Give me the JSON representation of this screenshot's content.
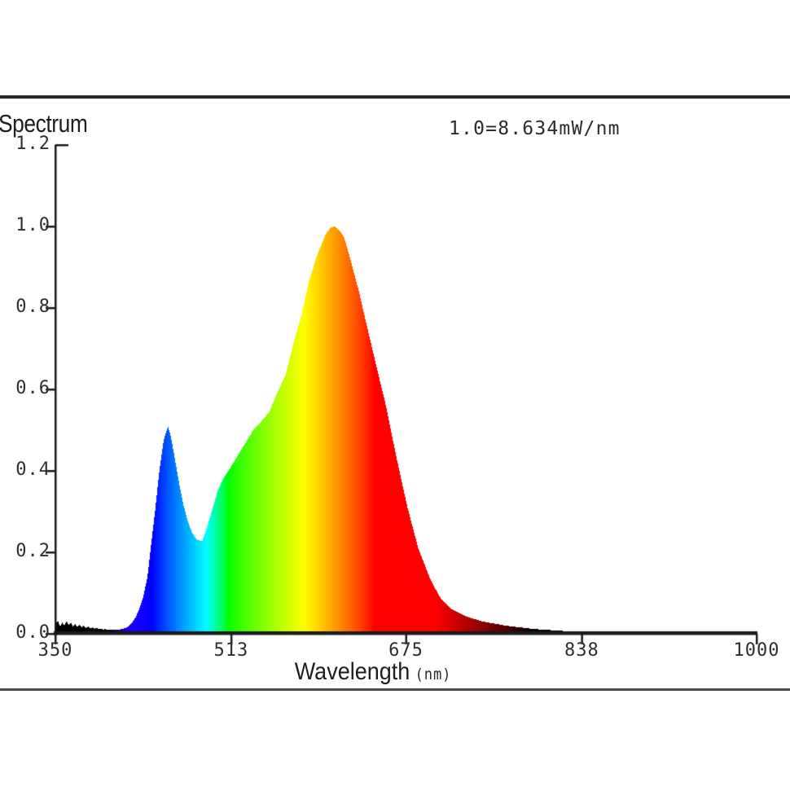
{
  "page": {
    "background": "#ffffff",
    "top_rule_color": "#282828",
    "bottom_rule_color": "#4d4d4d",
    "text_color": "#2e2e2e"
  },
  "chart_data": {
    "type": "area",
    "title": "Spectrum",
    "annotation": "1.0=8.634mW/nm",
    "normalization": "1.0 = 8.634 mW/nm",
    "xlabel": "Wavelength (nm)",
    "xlabel_main": "Wavelength",
    "xlabel_unit": "(nm)",
    "ylabel": "",
    "xlim": [
      350,
      1000
    ],
    "ylim": [
      0,
      1.2
    ],
    "grid": false,
    "legend": "none",
    "fill": "visible-spectrum-wavelength-gradient",
    "axis_color": "#1a1a1a",
    "xticks": [
      {
        "label": "350",
        "value": 350
      },
      {
        "label": "513",
        "value": 513
      },
      {
        "label": "675",
        "value": 675
      },
      {
        "label": "838",
        "value": 838
      },
      {
        "label": "1000",
        "value": 1000
      }
    ],
    "yticks": [
      {
        "label": "0.0",
        "value": 0.0
      },
      {
        "label": "0.2",
        "value": 0.2
      },
      {
        "label": "0.4",
        "value": 0.4
      },
      {
        "label": "0.6",
        "value": 0.6
      },
      {
        "label": "0.8",
        "value": 0.8
      },
      {
        "label": "1.0",
        "value": 1.0
      },
      {
        "label": "1.2",
        "value": 1.2
      }
    ],
    "features": {
      "blue_peak": {
        "wavelength_nm": 454,
        "relative_intensity": 0.51
      },
      "valley": {
        "wavelength_nm": 482,
        "relative_intensity": 0.23
      },
      "main_peak": {
        "wavelength_nm": 609,
        "relative_intensity": 1.0
      }
    },
    "points": [
      [
        350,
        0.025
      ],
      [
        352,
        0.032
      ],
      [
        354,
        0.018
      ],
      [
        356,
        0.028
      ],
      [
        358,
        0.02
      ],
      [
        360,
        0.03
      ],
      [
        362,
        0.022
      ],
      [
        364,
        0.027
      ],
      [
        366,
        0.017
      ],
      [
        368,
        0.024
      ],
      [
        370,
        0.016
      ],
      [
        372,
        0.022
      ],
      [
        374,
        0.015
      ],
      [
        376,
        0.02
      ],
      [
        378,
        0.014
      ],
      [
        380,
        0.018
      ],
      [
        382,
        0.013
      ],
      [
        384,
        0.016
      ],
      [
        386,
        0.012
      ],
      [
        388,
        0.015
      ],
      [
        390,
        0.011
      ],
      [
        392,
        0.013
      ],
      [
        394,
        0.01
      ],
      [
        396,
        0.012
      ],
      [
        398,
        0.009
      ],
      [
        400,
        0.011
      ],
      [
        402,
        0.009
      ],
      [
        404,
        0.01
      ],
      [
        406,
        0.009
      ],
      [
        408,
        0.01
      ],
      [
        412,
        0.012
      ],
      [
        416,
        0.016
      ],
      [
        420,
        0.025
      ],
      [
        424,
        0.04
      ],
      [
        428,
        0.065
      ],
      [
        431,
        0.09
      ],
      [
        435,
        0.14
      ],
      [
        438,
        0.21
      ],
      [
        442,
        0.3
      ],
      [
        446,
        0.4
      ],
      [
        450,
        0.475
      ],
      [
        454,
        0.51
      ],
      [
        457,
        0.48
      ],
      [
        460,
        0.435
      ],
      [
        464,
        0.375
      ],
      [
        468,
        0.32
      ],
      [
        472,
        0.28
      ],
      [
        476,
        0.25
      ],
      [
        481,
        0.23
      ],
      [
        486,
        0.228
      ],
      [
        490,
        0.26
      ],
      [
        495,
        0.305
      ],
      [
        500,
        0.35
      ],
      [
        505,
        0.38
      ],
      [
        510,
        0.4
      ],
      [
        517,
        0.43
      ],
      [
        525,
        0.465
      ],
      [
        533,
        0.5
      ],
      [
        540,
        0.52
      ],
      [
        548,
        0.545
      ],
      [
        555,
        0.59
      ],
      [
        563,
        0.635
      ],
      [
        570,
        0.71
      ],
      [
        578,
        0.785
      ],
      [
        585,
        0.87
      ],
      [
        593,
        0.935
      ],
      [
        600,
        0.98
      ],
      [
        605,
        0.998
      ],
      [
        609,
        1.0
      ],
      [
        613,
        0.99
      ],
      [
        617,
        0.975
      ],
      [
        622,
        0.93
      ],
      [
        631,
        0.84
      ],
      [
        638,
        0.76
      ],
      [
        646,
        0.67
      ],
      [
        656,
        0.56
      ],
      [
        666,
        0.43
      ],
      [
        676,
        0.31
      ],
      [
        686,
        0.21
      ],
      [
        697,
        0.135
      ],
      [
        706,
        0.09
      ],
      [
        716,
        0.062
      ],
      [
        731,
        0.042
      ],
      [
        746,
        0.03
      ],
      [
        767,
        0.02
      ],
      [
        792,
        0.012
      ],
      [
        820,
        0.007
      ],
      [
        860,
        0.004
      ],
      [
        900,
        0.002
      ],
      [
        950,
        0.001
      ],
      [
        1000,
        0.001
      ]
    ]
  }
}
